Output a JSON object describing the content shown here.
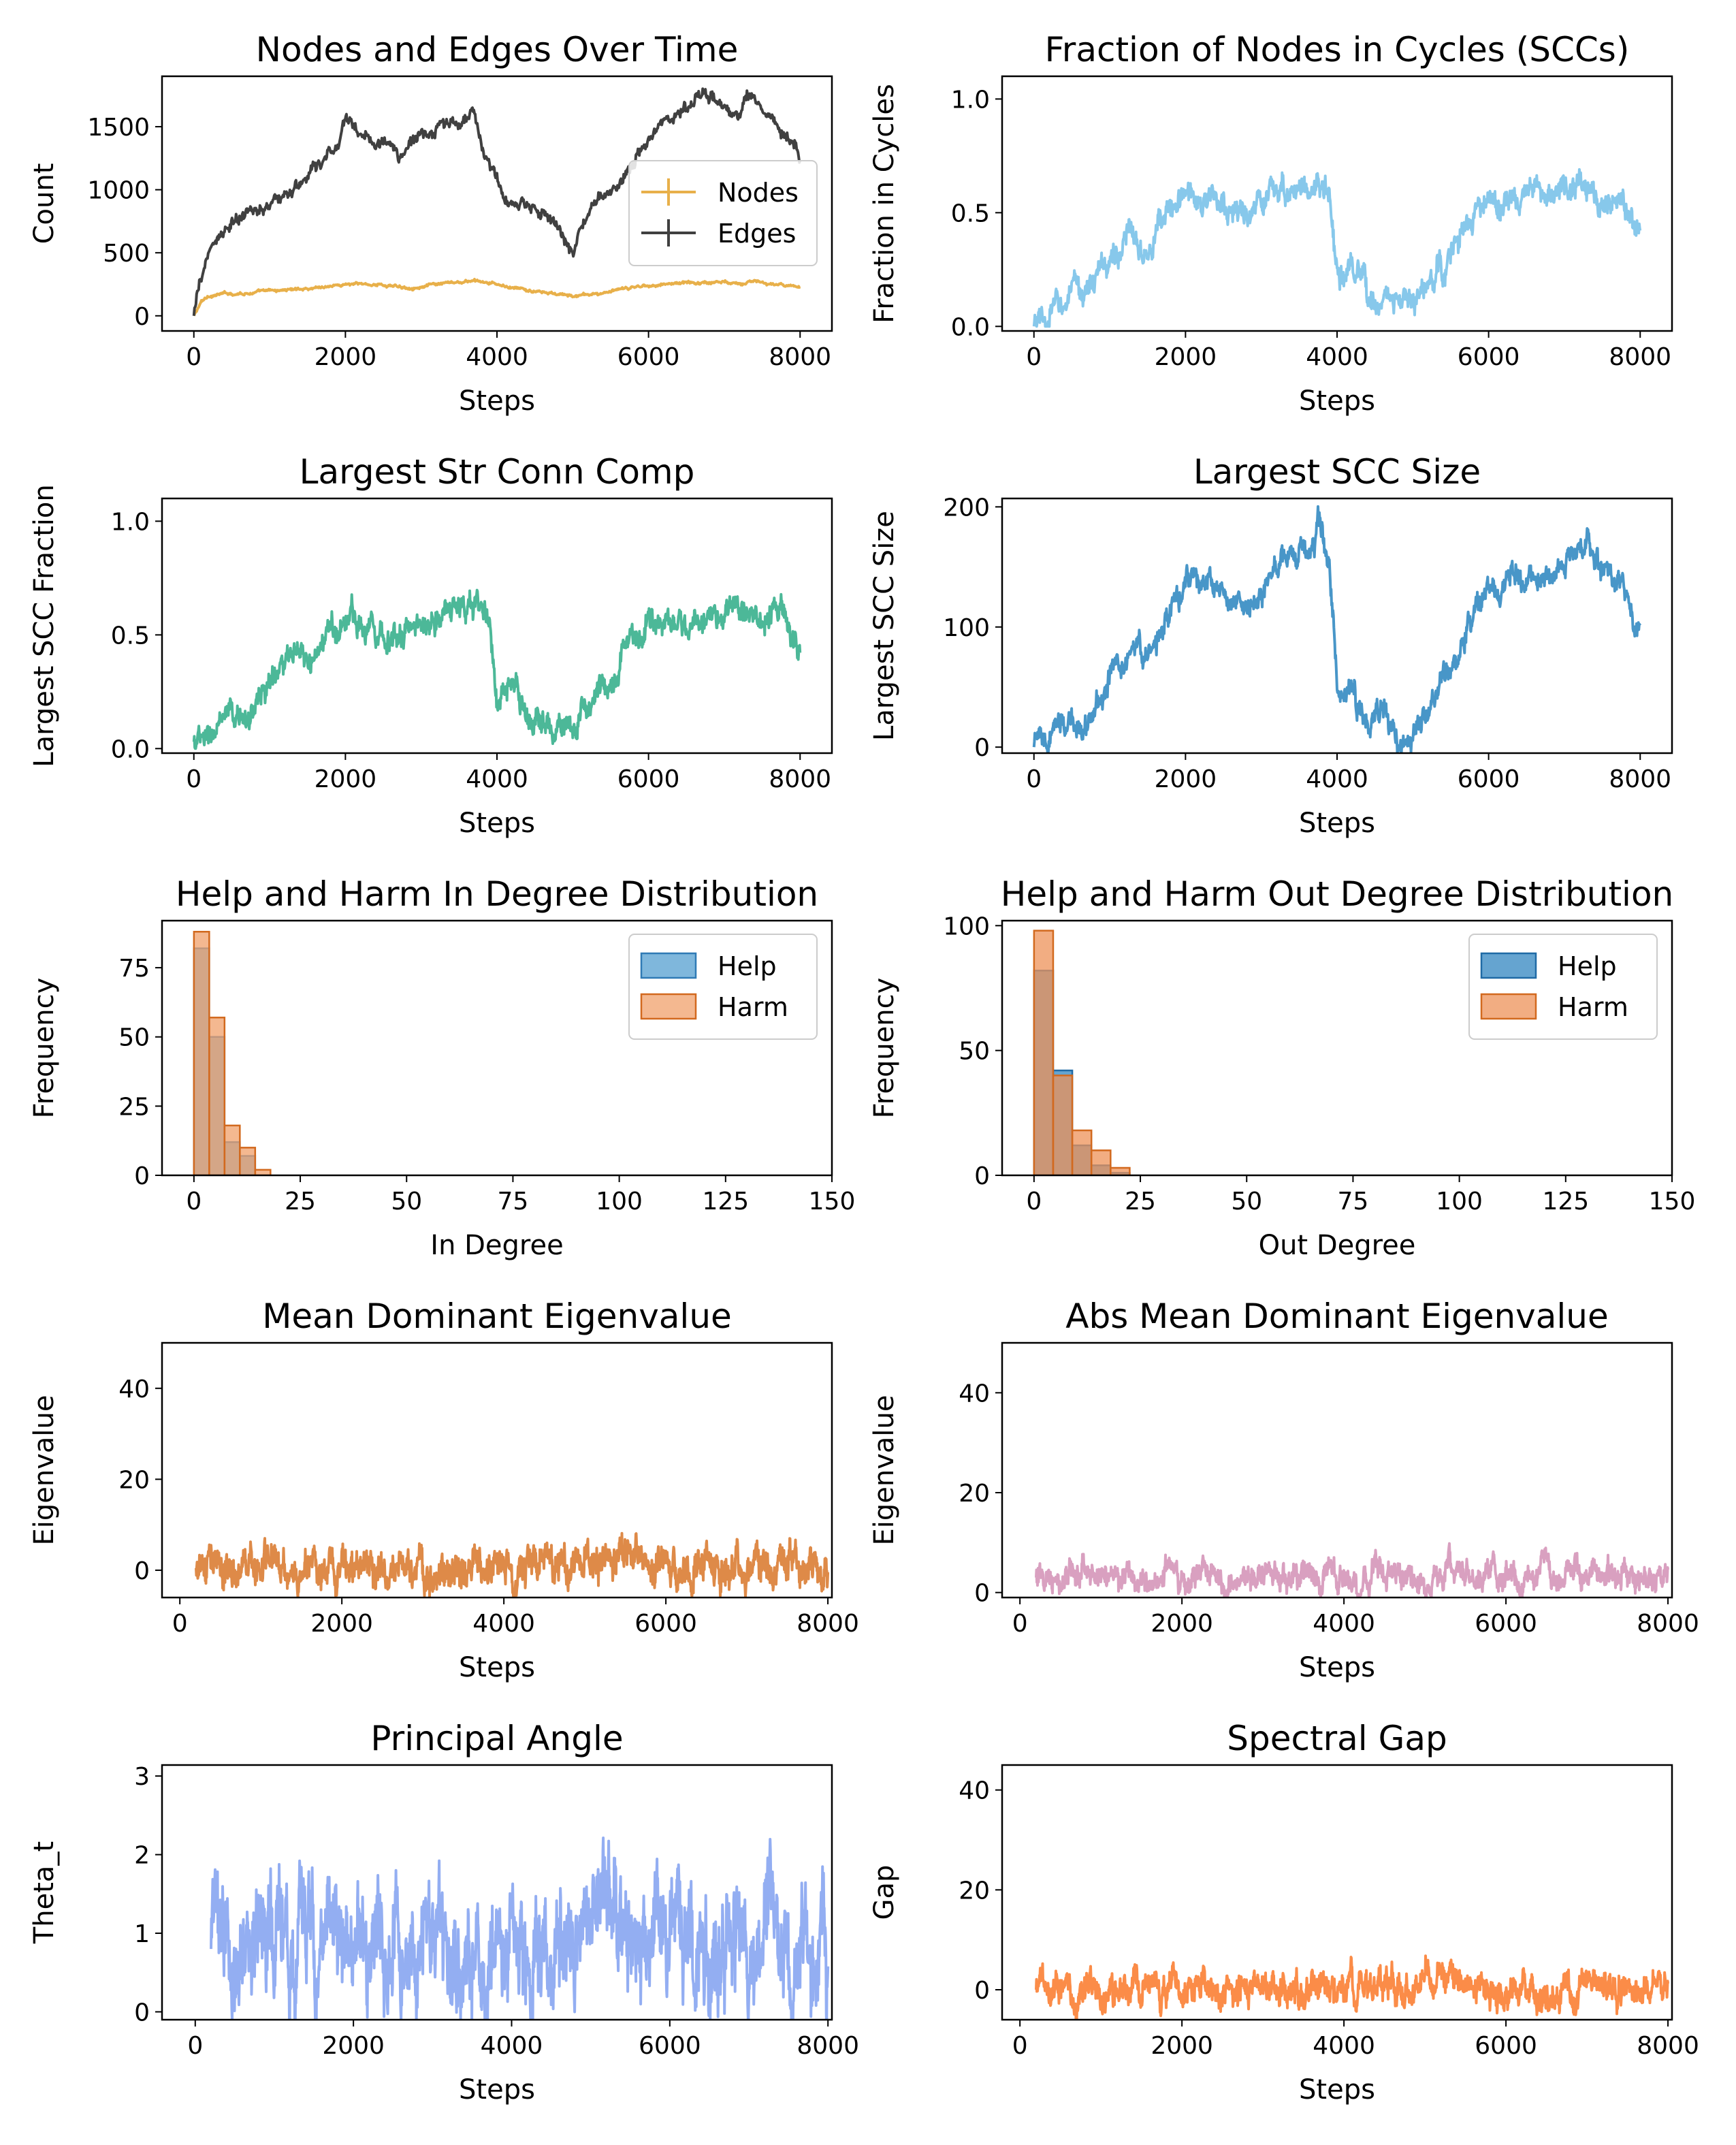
{
  "figure": {
    "grid_rows": 5,
    "grid_cols": 2
  },
  "chart_data": [
    {
      "type": "line",
      "title": "Nodes and Edges Over Time",
      "xlabel": "Steps",
      "ylabel": "Count",
      "xlim": [
        -420,
        8420
      ],
      "ylim": [
        -120,
        1900
      ],
      "xticks": [
        0,
        2000,
        4000,
        6000,
        8000
      ],
      "yticks": [
        0,
        500,
        1000,
        1500
      ],
      "legend": {
        "position": "right",
        "entries": [
          "Nodes",
          "Edges"
        ]
      },
      "series": [
        {
          "name": "Nodes",
          "color": "#e8b04a",
          "noise": 10,
          "density": 1,
          "x": [
            0,
            100,
            200,
            400,
            800,
            1200,
            1600,
            2000,
            2400,
            2800,
            3200,
            3700,
            4000,
            4400,
            5000,
            5400,
            6000,
            6400,
            7000,
            7500,
            8000
          ],
          "values": [
            0,
            110,
            160,
            175,
            185,
            205,
            225,
            250,
            250,
            225,
            245,
            275,
            245,
            200,
            155,
            180,
            245,
            260,
            270,
            265,
            215
          ]
        },
        {
          "name": "Edges",
          "color": "#404040",
          "noise": 45,
          "density": 1,
          "x": [
            0,
            100,
            200,
            300,
            500,
            800,
            1000,
            1300,
            1600,
            1900,
            2000,
            2200,
            2500,
            2700,
            3000,
            3300,
            3600,
            3700,
            3800,
            4100,
            4300,
            4600,
            5000,
            5100,
            5300,
            5600,
            5800,
            6000,
            6200,
            6500,
            6700,
            7000,
            7200,
            7300,
            7600,
            7900,
            8000
          ],
          "values": [
            0,
            300,
            520,
            620,
            720,
            820,
            900,
            980,
            1150,
            1350,
            1580,
            1450,
            1380,
            1250,
            1450,
            1500,
            1550,
            1650,
            1350,
            900,
            850,
            850,
            480,
            680,
            900,
            1050,
            1250,
            1400,
            1550,
            1650,
            1750,
            1650,
            1600,
            1780,
            1600,
            1400,
            1300
          ]
        }
      ]
    },
    {
      "type": "line",
      "title": "Fraction of Nodes in Cycles (SCCs)",
      "xlabel": "Steps",
      "ylabel": "Fraction in Cycles",
      "xlim": [
        -420,
        8420
      ],
      "ylim": [
        -0.02,
        1.1
      ],
      "xticks": [
        0,
        2000,
        4000,
        6000,
        8000
      ],
      "yticks": [
        0.0,
        0.5,
        1.0
      ],
      "series": [
        {
          "name": "Fraction in Cycles",
          "color": "#87c8eb",
          "noise": 0.05,
          "density": 1.5,
          "x": [
            0,
            200,
            250,
            600,
            800,
            1000,
            1300,
            1500,
            1800,
            2000,
            2300,
            2600,
            2900,
            3200,
            3500,
            3700,
            3900,
            4000,
            4200,
            4400,
            4600,
            4800,
            5000,
            5300,
            5500,
            5800,
            6000,
            6400,
            6800,
            7200,
            7500,
            7800,
            8000
          ],
          "values": [
            0,
            0,
            0.08,
            0.15,
            0.2,
            0.3,
            0.4,
            0.38,
            0.5,
            0.58,
            0.56,
            0.5,
            0.5,
            0.6,
            0.62,
            0.62,
            0.58,
            0.2,
            0.25,
            0.1,
            0.15,
            0.1,
            0.1,
            0.22,
            0.3,
            0.5,
            0.52,
            0.56,
            0.56,
            0.62,
            0.58,
            0.56,
            0.45
          ]
        }
      ]
    },
    {
      "type": "line",
      "title": "Largest Str Conn Comp",
      "xlabel": "Steps",
      "ylabel": "Largest SCC Fraction",
      "xlim": [
        -420,
        8420
      ],
      "ylim": [
        -0.02,
        1.1
      ],
      "xticks": [
        0,
        2000,
        4000,
        6000,
        8000
      ],
      "yticks": [
        0.0,
        0.5,
        1.0
      ],
      "series": [
        {
          "name": "Largest SCC Fraction",
          "color": "#4cb898",
          "noise": 0.05,
          "density": 1.5,
          "x": [
            0,
            200,
            250,
            600,
            800,
            1000,
            1300,
            1500,
            1800,
            2000,
            2300,
            2600,
            2900,
            3200,
            3500,
            3700,
            3900,
            4000,
            4200,
            4400,
            4600,
            4800,
            5000,
            5300,
            5500,
            5800,
            6000,
            6400,
            6800,
            7200,
            7500,
            7800,
            8000
          ],
          "values": [
            0.03,
            0.02,
            0.08,
            0.12,
            0.18,
            0.3,
            0.4,
            0.35,
            0.5,
            0.58,
            0.56,
            0.5,
            0.52,
            0.6,
            0.62,
            0.62,
            0.58,
            0.2,
            0.25,
            0.1,
            0.15,
            0.08,
            0.1,
            0.22,
            0.3,
            0.5,
            0.52,
            0.56,
            0.56,
            0.62,
            0.58,
            0.56,
            0.45
          ]
        }
      ]
    },
    {
      "type": "line",
      "title": "Largest SCC Size",
      "xlabel": "Steps",
      "ylabel": "Largest SCC Size",
      "xlim": [
        -420,
        8420
      ],
      "ylim": [
        -5,
        207
      ],
      "xticks": [
        0,
        2000,
        4000,
        6000,
        8000
      ],
      "yticks": [
        0,
        100,
        200
      ],
      "series": [
        {
          "name": "Largest SCC Size",
          "color": "#4896c8",
          "noise": 9,
          "density": 1.5,
          "x": [
            0,
            200,
            250,
            600,
            800,
            1000,
            1300,
            1500,
            1800,
            2000,
            2300,
            2600,
            2900,
            3200,
            3500,
            3700,
            3750,
            3900,
            4000,
            4200,
            4400,
            4600,
            4800,
            5000,
            5300,
            5500,
            5800,
            6000,
            6400,
            6800,
            7200,
            7500,
            7800,
            8000
          ],
          "values": [
            0,
            1,
            12,
            20,
            30,
            60,
            85,
            75,
            110,
            140,
            135,
            115,
            120,
            150,
            160,
            170,
            195,
            150,
            50,
            50,
            15,
            30,
            10,
            15,
            45,
            65,
            110,
            125,
            140,
            140,
            175,
            150,
            135,
            95
          ]
        }
      ]
    },
    {
      "type": "bar",
      "title": "Help and Harm In Degree Distribution",
      "xlabel": "In Degree",
      "ylabel": "Frequency",
      "xlim": [
        -7.5,
        150
      ],
      "ylim": [
        0,
        92
      ],
      "xticks": [
        0,
        25,
        50,
        75,
        100,
        125,
        150
      ],
      "yticks": [
        0,
        25,
        50,
        75
      ],
      "bin_width": 3.6,
      "legend": {
        "position": "top-right",
        "entries": [
          "Help",
          "Harm"
        ]
      },
      "series": [
        {
          "name": "Help",
          "color": "#5fa5d3",
          "edge": "#2f7ab5",
          "opacity": 0.8,
          "bins": [
            0,
            3.6,
            7.2,
            10.8
          ],
          "values": [
            82,
            50,
            12,
            7
          ]
        },
        {
          "name": "Harm",
          "color": "#f0a06b",
          "edge": "#d2691e",
          "opacity": 0.75,
          "bins": [
            0,
            3.6,
            7.2,
            10.8,
            14.4
          ],
          "values": [
            88,
            57,
            18,
            10,
            2
          ]
        }
      ]
    },
    {
      "type": "bar",
      "title": "Help and Harm Out Degree Distribution",
      "xlabel": "Out Degree",
      "ylabel": "Frequency",
      "xlim": [
        -7.5,
        150
      ],
      "ylim": [
        0,
        102
      ],
      "xticks": [
        0,
        25,
        50,
        75,
        100,
        125,
        150
      ],
      "yticks": [
        0,
        50,
        100
      ],
      "bin_width": 4.5,
      "legend": {
        "position": "top-right",
        "entries": [
          "Help",
          "Harm"
        ]
      },
      "series": [
        {
          "name": "Help",
          "color": "#4a94c8",
          "edge": "#1f6aa5",
          "opacity": 0.85,
          "bins": [
            0,
            4.5,
            9,
            13.5,
            18
          ],
          "values": [
            82,
            42,
            12,
            4,
            1
          ]
        },
        {
          "name": "Harm",
          "color": "#ee9258",
          "edge": "#d2691e",
          "opacity": 0.75,
          "bins": [
            0,
            4.5,
            9,
            13.5,
            18
          ],
          "values": [
            98,
            40,
            18,
            10,
            3
          ]
        }
      ]
    },
    {
      "type": "line",
      "title": "Mean Dominant Eigenvalue",
      "xlabel": "Steps",
      "ylabel": "Eigenvalue",
      "xlim": [
        -220,
        8050
      ],
      "ylim": [
        -6,
        50
      ],
      "xticks": [
        0,
        2000,
        4000,
        6000,
        8000
      ],
      "yticks": [
        0,
        20,
        40
      ],
      "series": [
        {
          "name": "Eigenvalue",
          "color": "#de8a48",
          "noise": 3.2,
          "density": 2,
          "x": [
            200,
            1000,
            2000,
            3000,
            4000,
            5000,
            5200,
            5600,
            6000,
            7000,
            8000
          ],
          "values": [
            0.5,
            1,
            0,
            0.5,
            0.5,
            1,
            3,
            2.5,
            1,
            0.5,
            0.5
          ]
        }
      ]
    },
    {
      "type": "line",
      "title": "Abs Mean Dominant Eigenvalue",
      "xlabel": "Steps",
      "ylabel": "Eigenvalue",
      "xlim": [
        -220,
        8050
      ],
      "ylim": [
        -1,
        50
      ],
      "xticks": [
        0,
        2000,
        4000,
        6000,
        8000
      ],
      "yticks": [
        0,
        20,
        40
      ],
      "series": [
        {
          "name": "Abs Eigenvalue",
          "color": "#d9a0c0",
          "noise": 2.2,
          "density": 2,
          "x": [
            200,
            1000,
            2000,
            3000,
            4000,
            5000,
            5200,
            5600,
            6000,
            7000,
            8000
          ],
          "values": [
            3,
            3.5,
            3.5,
            3,
            3,
            3,
            4.5,
            3.5,
            3,
            3,
            2.5
          ]
        }
      ]
    },
    {
      "type": "line",
      "title": "Principal Angle",
      "xlabel": "Steps",
      "ylabel": "Theta_t",
      "xlim": [
        -420,
        8050
      ],
      "ylim": [
        -0.1,
        3.14
      ],
      "xticks": [
        0,
        2000,
        4000,
        6000,
        8000
      ],
      "yticks": [
        0,
        1,
        2,
        3
      ],
      "series": [
        {
          "name": "Theta_t",
          "color": "#93aef2",
          "noise": 0.55,
          "density": 2,
          "x": [
            200,
            800,
            1500,
            2500,
            3500,
            4000,
            4500,
            5200,
            5500,
            6000,
            7000,
            8000
          ],
          "values": [
            0.8,
            1.1,
            0.9,
            0.8,
            0.8,
            0.7,
            0.8,
            1.3,
            0.9,
            0.8,
            0.8,
            0.8
          ]
        }
      ]
    },
    {
      "type": "line",
      "title": "Spectral Gap",
      "xlabel": "Steps",
      "ylabel": "Gap",
      "xlim": [
        -220,
        8050
      ],
      "ylim": [
        -6,
        45
      ],
      "xticks": [
        0,
        2000,
        4000,
        6000,
        8000
      ],
      "yticks": [
        0,
        20,
        40
      ],
      "series": [
        {
          "name": "Gap",
          "color": "#fb8c48",
          "noise": 2.6,
          "density": 2,
          "x": [
            200,
            1000,
            2000,
            3000,
            4000,
            5000,
            5200,
            5600,
            6000,
            7000,
            8000
          ],
          "values": [
            0,
            0.5,
            0,
            0.5,
            0.5,
            0.5,
            2.5,
            2,
            0.5,
            0,
            0
          ]
        }
      ]
    }
  ]
}
